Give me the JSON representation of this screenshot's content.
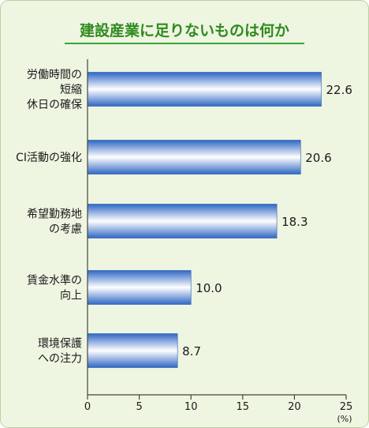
{
  "colors": {
    "background": "#eef5e1",
    "border": "#b9d2a2",
    "title_text": "#2e8b1f",
    "title_underline": "#3aa53a",
    "bar_dark": "#2f67c4",
    "bar_light": "#ffffff",
    "axis": "#444444",
    "text": "#1a1a1a"
  },
  "chart_data": {
    "type": "bar",
    "orientation": "horizontal",
    "title": "建設産業に足りないものは何か",
    "categories": [
      [
        "労働時間の",
        "短縮",
        "休日の確保"
      ],
      [
        "CI活動の強化"
      ],
      [
        "希望勤務地",
        "の考慮"
      ],
      [
        "賃金水準の",
        "向上"
      ],
      [
        "環境保護",
        "への注力"
      ]
    ],
    "values": [
      22.6,
      20.6,
      18.3,
      10.0,
      8.7
    ],
    "value_labels": [
      "22.6",
      "20.6",
      "18.3",
      "10.0",
      "8.7"
    ],
    "x_ticks": [
      "0",
      "5",
      "10",
      "15",
      "20",
      "25"
    ],
    "xlim": [
      0,
      25
    ],
    "unit": "(%)",
    "grid": false,
    "legend": "none"
  }
}
